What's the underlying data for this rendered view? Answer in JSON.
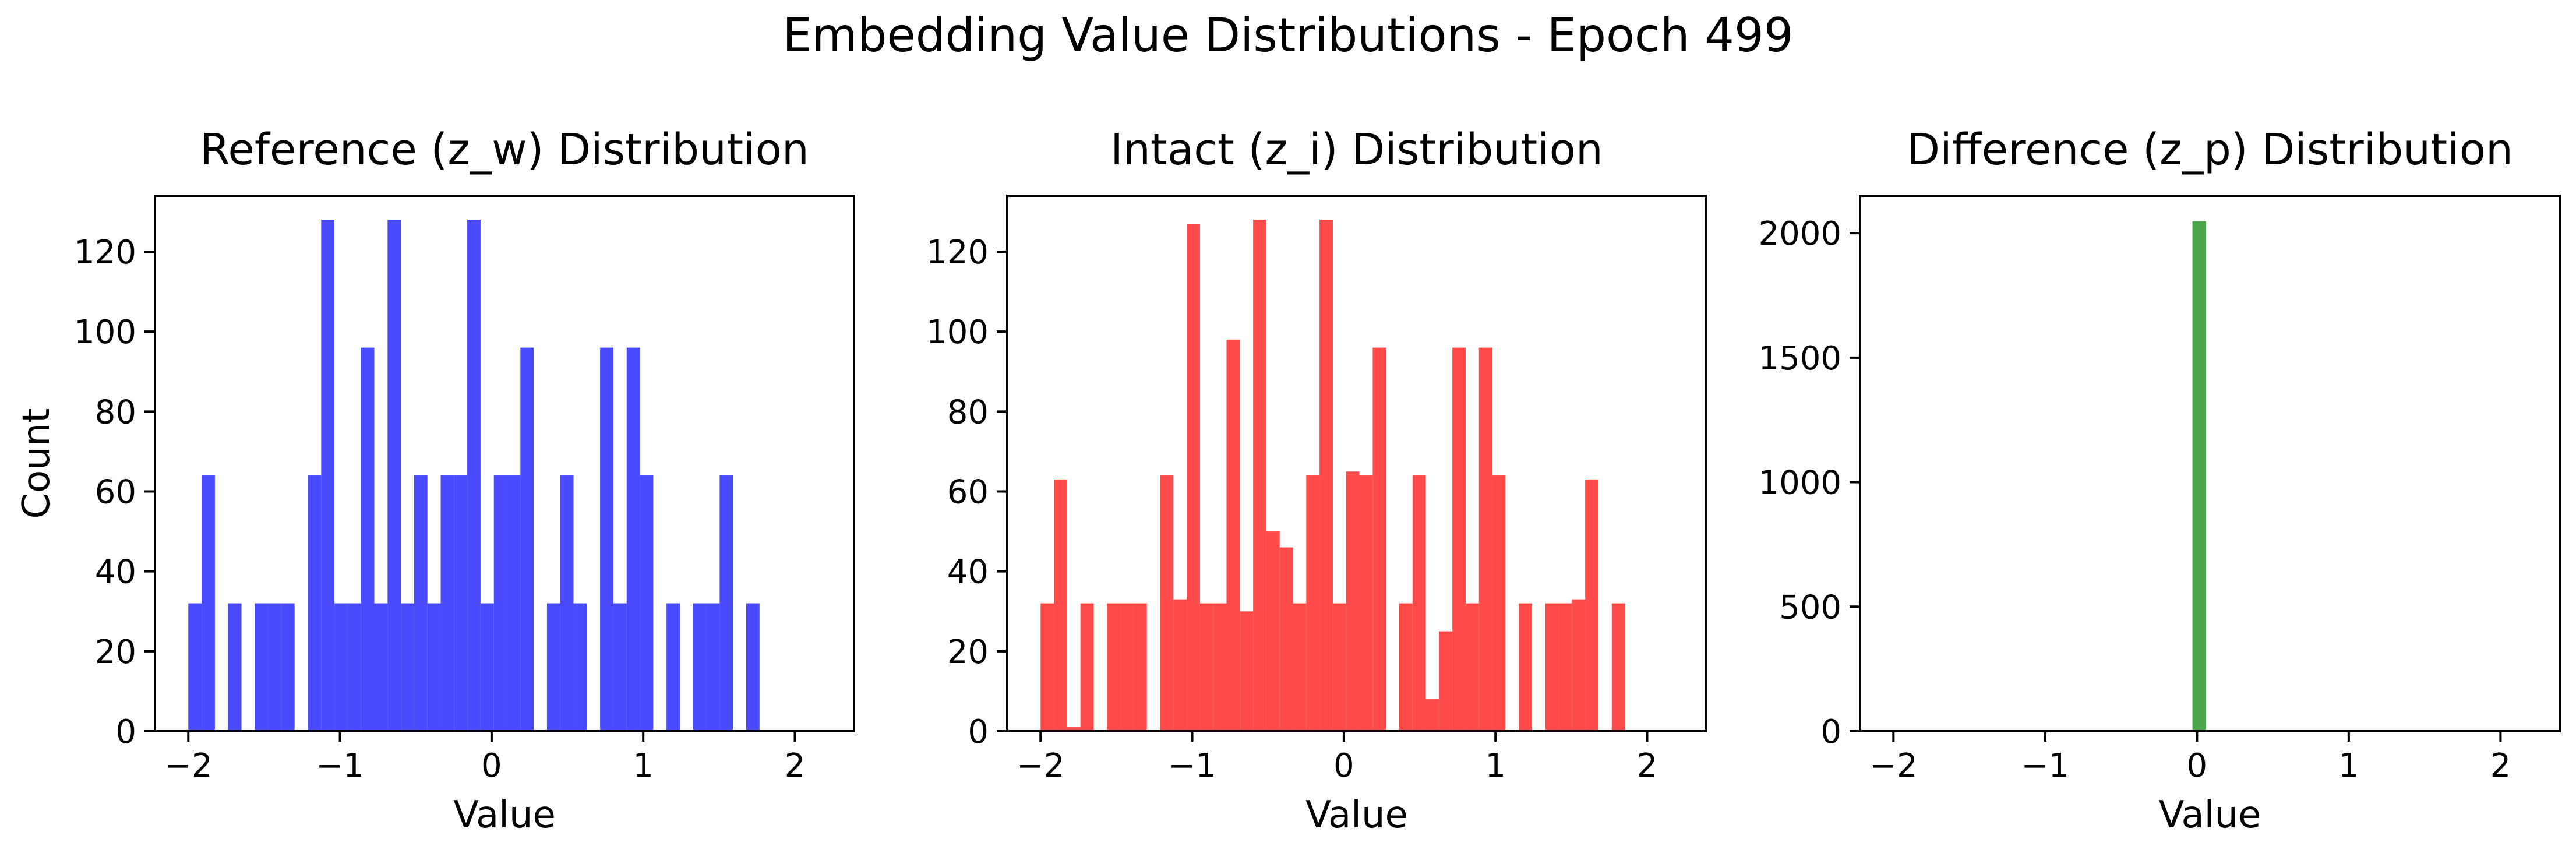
{
  "figure": {
    "suptitle": "Embedding Value Distributions - Epoch 499"
  },
  "chart_data": [
    {
      "type": "bar",
      "title": "Reference (z_w) Distribution",
      "xlabel": "Value",
      "ylabel": "Count",
      "xlim": [
        -2.22,
        2.39
      ],
      "ylim": [
        0,
        134
      ],
      "xticks": [
        -2,
        -1,
        0,
        1,
        2
      ],
      "xtick_labels": [
        "−2",
        "−1",
        "0",
        "1",
        "2"
      ],
      "yticks": [
        0,
        20,
        40,
        60,
        80,
        100,
        120
      ],
      "ytick_labels": [
        "0",
        "20",
        "40",
        "60",
        "80",
        "100",
        "120"
      ],
      "color": "#4a4aff",
      "grid": false,
      "bins": {
        "start": -2.0,
        "width": 0.0876
      },
      "values": [
        32,
        64,
        0,
        32,
        0,
        32,
        32,
        32,
        0,
        64,
        128,
        32,
        32,
        96,
        32,
        128,
        32,
        64,
        32,
        64,
        64,
        128,
        32,
        64,
        64,
        96,
        0,
        32,
        64,
        32,
        0,
        96,
        32,
        96,
        64,
        0,
        32,
        0,
        32,
        32,
        64,
        0,
        32
      ]
    },
    {
      "type": "bar",
      "title": "Intact (z_i) Distribution",
      "xlabel": "Value",
      "ylabel": "",
      "xlim": [
        -2.22,
        2.39
      ],
      "ylim": [
        0,
        134
      ],
      "xticks": [
        -2,
        -1,
        0,
        1,
        2
      ],
      "xtick_labels": [
        "−2",
        "−1",
        "0",
        "1",
        "2"
      ],
      "yticks": [
        0,
        20,
        40,
        60,
        80,
        100,
        120
      ],
      "ytick_labels": [
        "0",
        "20",
        "40",
        "60",
        "80",
        "100",
        "120"
      ],
      "color": "#ff4a4a",
      "grid": false,
      "bins": {
        "start": -2.0,
        "width": 0.0876
      },
      "values": [
        32,
        63,
        1,
        32,
        0,
        32,
        32,
        32,
        0,
        64,
        33,
        127,
        32,
        32,
        98,
        30,
        128,
        50,
        46,
        32,
        64,
        128,
        32,
        65,
        64,
        96,
        0,
        32,
        64,
        8,
        25,
        96,
        32,
        96,
        64,
        0,
        32,
        0,
        32,
        32,
        33,
        63,
        0,
        32
      ]
    },
    {
      "type": "bar",
      "title": "Difference (z_p) Distribution",
      "xlabel": "Value",
      "ylabel": "",
      "xlim": [
        -2.22,
        2.39
      ],
      "ylim": [
        0,
        2150
      ],
      "xticks": [
        -2,
        -1,
        0,
        1,
        2
      ],
      "xtick_labels": [
        "−2",
        "−1",
        "0",
        "1",
        "2"
      ],
      "yticks": [
        0,
        500,
        1000,
        1500,
        2000
      ],
      "ytick_labels": [
        "0",
        "500",
        "1000",
        "1500",
        "2000"
      ],
      "color": "#4ca64c",
      "grid": false,
      "bins": {
        "start": -0.03,
        "width": 0.09
      },
      "values": [
        2048
      ]
    }
  ]
}
